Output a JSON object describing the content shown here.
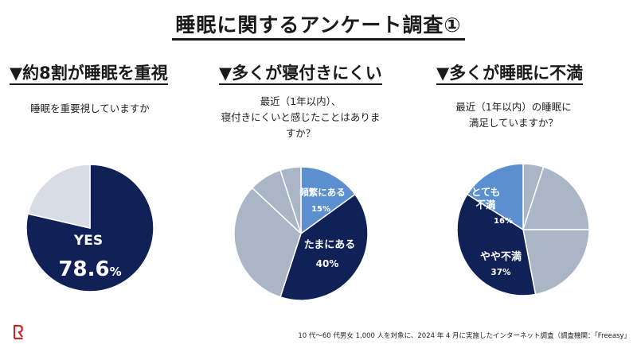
{
  "title": "睡眠に関するアンケート調査①",
  "colors": {
    "navy": "#0f2157",
    "mid_blue": "#5b8fd0",
    "gray_blue": "#aab5c6",
    "light_gray": "#d8dce4",
    "white": "#ffffff",
    "logo_red": "#c62828"
  },
  "columns": [
    {
      "heading": "▼約8割が睡眠を重視",
      "question_lines": [
        "睡眠を重要視していますか"
      ]
    },
    {
      "heading": "▼多くが寝付きにくい",
      "question_lines": [
        "最近（1年以内）、",
        "寝付きにくいと感じたことはありま",
        "すか？"
      ]
    },
    {
      "heading": "▼多くが睡眠に不満",
      "question_lines": [
        "最近（1年以内）の睡眠に",
        "満足していますか？"
      ]
    }
  ],
  "chart_data": [
    {
      "type": "pie",
      "title": "睡眠を重要視していますか",
      "slices": [
        {
          "label": "YES",
          "value": 78.6,
          "color": "#0f2157"
        },
        {
          "label": "",
          "value": 21.4,
          "color": "#d8dce4"
        }
      ],
      "annotations": {
        "yes_label": "YES",
        "yes_number": "78.6",
        "yes_unit": "%"
      }
    },
    {
      "type": "pie",
      "title": "寝付きにくいと感じたことはありますか？",
      "slices": [
        {
          "label": "頻繁にある",
          "value": 15,
          "color": "#5b8fd0"
        },
        {
          "label": "たまにある",
          "value": 40,
          "color": "#0f2157"
        },
        {
          "label": "",
          "value": 32,
          "color": "#aab5c6"
        },
        {
          "label": "",
          "value": 8,
          "color": "#aab5c6"
        },
        {
          "label": "",
          "value": 5,
          "color": "#aab5c6"
        }
      ],
      "annotations": {
        "l1": "頻繁にある",
        "v1": "15%",
        "l2": "たまにある",
        "v2": "40%"
      }
    },
    {
      "type": "pie",
      "title": "最近（1年以内）の睡眠に満足していますか？",
      "slices": [
        {
          "label": "",
          "value": 5,
          "color": "#aab5c6"
        },
        {
          "label": "",
          "value": 20,
          "color": "#aab5c6"
        },
        {
          "label": "",
          "value": 22,
          "color": "#aab5c6"
        },
        {
          "label": "やや不満",
          "value": 37,
          "color": "#0f2157"
        },
        {
          "label": "とても不満",
          "value": 16,
          "color": "#5b8fd0"
        }
      ],
      "annotations": {
        "l1a": "とても",
        "l1b": "不満",
        "v1": "16%",
        "l2": "やや不満",
        "v2": "37%"
      }
    }
  ],
  "footer": "10 代〜60 代男女 1,000 人を対象に、2024 年 4 月に実施したインターネット調査（調査機関：「Freeasy」"
}
